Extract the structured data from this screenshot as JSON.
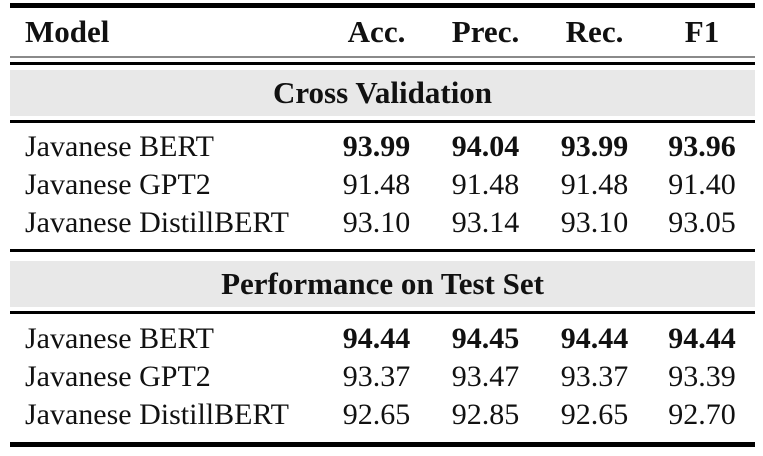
{
  "table": {
    "columns": {
      "model": "Model",
      "acc": "Acc.",
      "prec": "Prec.",
      "rec": "Rec.",
      "f1": "F1"
    },
    "sections": [
      {
        "title": "Cross Validation",
        "rows": [
          {
            "model": "Javanese BERT",
            "values": [
              "93.99",
              "94.04",
              "93.99",
              "93.96"
            ],
            "bold": true
          },
          {
            "model": "Javanese GPT2",
            "values": [
              "91.48",
              "91.48",
              "91.48",
              "91.40"
            ],
            "bold": false
          },
          {
            "model": "Javanese DistillBERT",
            "values": [
              "93.10",
              "93.14",
              "93.10",
              "93.05"
            ],
            "bold": false
          }
        ]
      },
      {
        "title": "Performance on Test Set",
        "rows": [
          {
            "model": "Javanese BERT",
            "values": [
              "94.44",
              "94.45",
              "94.44",
              "94.44"
            ],
            "bold": true
          },
          {
            "model": "Javanese GPT2",
            "values": [
              "93.37",
              "93.47",
              "93.37",
              "93.39"
            ],
            "bold": false
          },
          {
            "model": "Javanese DistillBERT",
            "values": [
              "92.65",
              "92.85",
              "92.65",
              "92.70"
            ],
            "bold": false
          }
        ]
      }
    ]
  },
  "colors": {
    "section_band": "#e8e8e8",
    "rule": "#000000",
    "background": "#ffffff",
    "text": "#111111"
  }
}
